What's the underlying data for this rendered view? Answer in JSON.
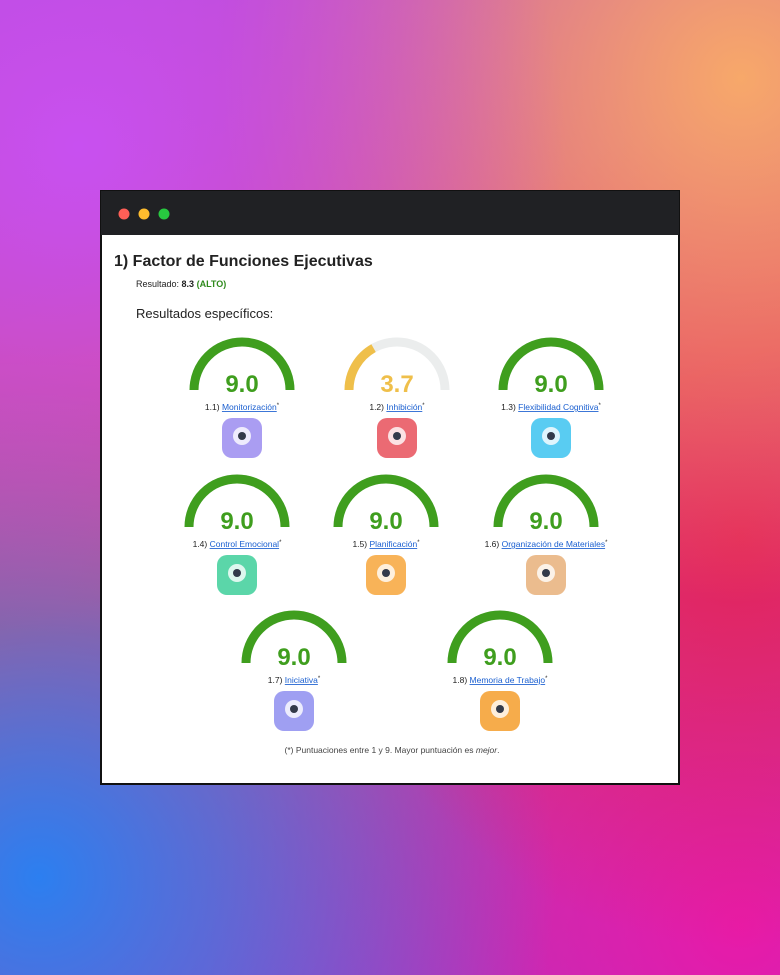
{
  "section": {
    "title": "1) Factor de Funciones Ejecutivas",
    "result_label": "Resultado:",
    "result_value": 8.3,
    "result_level": "(ALTO)",
    "subtitle": "Resultados específicos:"
  },
  "gauges": {
    "lim": [
      1,
      9
    ],
    "track_color": "#ebeded",
    "marker": "*",
    "items": [
      {
        "number": "1.1)",
        "name": "Monitorización",
        "value": 9.0,
        "value_label": "9.0",
        "color": "#3f9e1e"
      },
      {
        "number": "1.2)",
        "name": "Inhibición",
        "value": 3.7,
        "value_label": "3.7",
        "color": "#efbf4a"
      },
      {
        "number": "1.3)",
        "name": "Flexibilidad Cognitiva",
        "value": 9.0,
        "value_label": "9.0",
        "color": "#3f9e1e"
      },
      {
        "number": "1.4)",
        "name": "Control Emocional",
        "value": 9.0,
        "value_label": "9.0",
        "color": "#3f9e1e"
      },
      {
        "number": "1.5)",
        "name": "Planificación",
        "value": 9.0,
        "value_label": "9.0",
        "color": "#3f9e1e"
      },
      {
        "number": "1.6)",
        "name": "Organización de Materiales",
        "value": 9.0,
        "value_label": "9.0",
        "color": "#3f9e1e"
      },
      {
        "number": "1.7)",
        "name": "Iniciativa",
        "value": 9.0,
        "value_label": "9.0",
        "color": "#3f9e1e"
      },
      {
        "number": "1.8)",
        "name": "Memoria de Trabajo",
        "value": 9.0,
        "value_label": "9.0",
        "color": "#3f9e1e"
      }
    ]
  },
  "footnote": {
    "text": "(*) Puntuaciones entre 1 y 9. Mayor puntuación es ",
    "emphasis": "mejor",
    "end": "."
  }
}
